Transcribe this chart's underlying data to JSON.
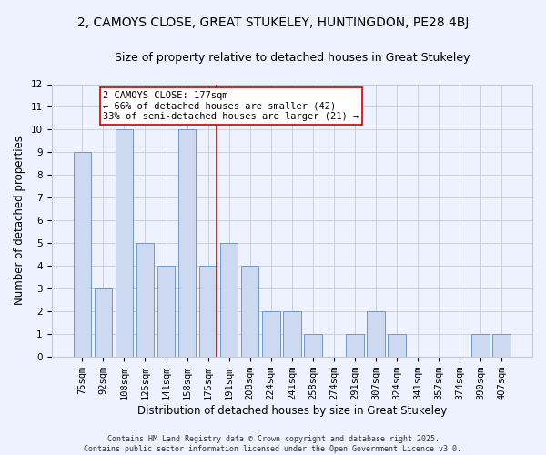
{
  "title_line1": "2, CAMOYS CLOSE, GREAT STUKELEY, HUNTINGDON, PE28 4BJ",
  "title_line2": "Size of property relative to detached houses in Great Stukeley",
  "xlabel": "Distribution of detached houses by size in Great Stukeley",
  "ylabel": "Number of detached properties",
  "categories": [
    "75sqm",
    "92sqm",
    "108sqm",
    "125sqm",
    "141sqm",
    "158sqm",
    "175sqm",
    "191sqm",
    "208sqm",
    "224sqm",
    "241sqm",
    "258sqm",
    "274sqm",
    "291sqm",
    "307sqm",
    "324sqm",
    "341sqm",
    "357sqm",
    "374sqm",
    "390sqm",
    "407sqm"
  ],
  "values": [
    9,
    3,
    10,
    5,
    4,
    10,
    4,
    5,
    4,
    2,
    2,
    1,
    0,
    1,
    2,
    1,
    0,
    0,
    0,
    1,
    1
  ],
  "bar_color": "#ccd9f0",
  "bar_edge_color": "#7098c8",
  "vline_index": 6,
  "vline_color": "#cc0000",
  "annotation_text": "2 CAMOYS CLOSE: 177sqm\n← 66% of detached houses are smaller (42)\n33% of semi-detached houses are larger (21) →",
  "annotation_box_color": "#ffffff",
  "annotation_box_edge_color": "#cc0000",
  "ylim": [
    0,
    12
  ],
  "yticks": [
    0,
    1,
    2,
    3,
    4,
    5,
    6,
    7,
    8,
    9,
    10,
    11,
    12
  ],
  "background_color": "#eef2ff",
  "grid_color": "#c8c8d8",
  "footer_line1": "Contains HM Land Registry data © Crown copyright and database right 2025.",
  "footer_line2": "Contains public sector information licensed under the Open Government Licence v3.0.",
  "title_fontsize": 10,
  "subtitle_fontsize": 9,
  "axis_label_fontsize": 8.5,
  "tick_fontsize": 7.5,
  "annotation_fontsize": 7.5,
  "footer_fontsize": 6
}
